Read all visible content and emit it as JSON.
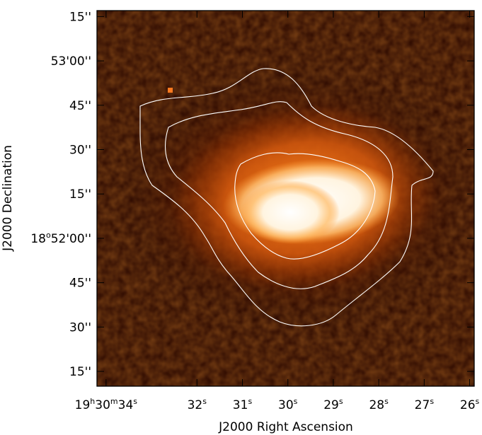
{
  "chart_data": {
    "type": "heatmap",
    "title": "",
    "xlabel": "J2000 Right Ascension",
    "ylabel": "J2000 Declination",
    "colormap": "black-orange-white (heat)",
    "colors": {
      "background": "#ffffff",
      "contour": "#ffffff",
      "frame": "#000000"
    },
    "grid": false,
    "y_ticks": [
      {
        "main": "15''",
        "value_arcsec": 75
      },
      {
        "main": "53'00''",
        "value_arcsec": 60
      },
      {
        "main": "45''",
        "value_arcsec": 45
      },
      {
        "main": "30''",
        "value_arcsec": 30
      },
      {
        "main": "15''",
        "value_arcsec": 15
      },
      {
        "main": "18",
        "sup": "o",
        "rest": "52'00''",
        "value_arcsec": 0
      },
      {
        "main": "45''",
        "value_arcsec": -15
      },
      {
        "main": "30''",
        "value_arcsec": -30
      },
      {
        "main": "15''",
        "value_arcsec": -45
      }
    ],
    "x_ticks": [
      {
        "parts": [
          [
            "19",
            ""
          ],
          [
            "h",
            "sup"
          ],
          [
            "30",
            ""
          ],
          [
            "m",
            "sup"
          ],
          [
            "34",
            ""
          ],
          [
            "s",
            "sup"
          ]
        ],
        "value_s": 34
      },
      {
        "parts": [
          [
            "32",
            ""
          ],
          [
            "s",
            "sup"
          ]
        ],
        "value_s": 32
      },
      {
        "parts": [
          [
            "31",
            ""
          ],
          [
            "s",
            "sup"
          ]
        ],
        "value_s": 31
      },
      {
        "parts": [
          [
            "30",
            ""
          ],
          [
            "s",
            "sup"
          ]
        ],
        "value_s": 30
      },
      {
        "parts": [
          [
            "29",
            ""
          ],
          [
            "s",
            "sup"
          ]
        ],
        "value_s": 29
      },
      {
        "parts": [
          [
            "28",
            ""
          ],
          [
            "s",
            "sup"
          ]
        ],
        "value_s": 28
      },
      {
        "parts": [
          [
            "27",
            ""
          ],
          [
            "s",
            "sup"
          ]
        ],
        "value_s": 27
      },
      {
        "parts": [
          [
            "26",
            ""
          ],
          [
            "s",
            "sup"
          ]
        ],
        "value_s": 26
      }
    ],
    "xlim_s": [
      34.2,
      25.9
    ],
    "ylim_arcsec": [
      77,
      -50
    ],
    "contour_levels": 3
  }
}
